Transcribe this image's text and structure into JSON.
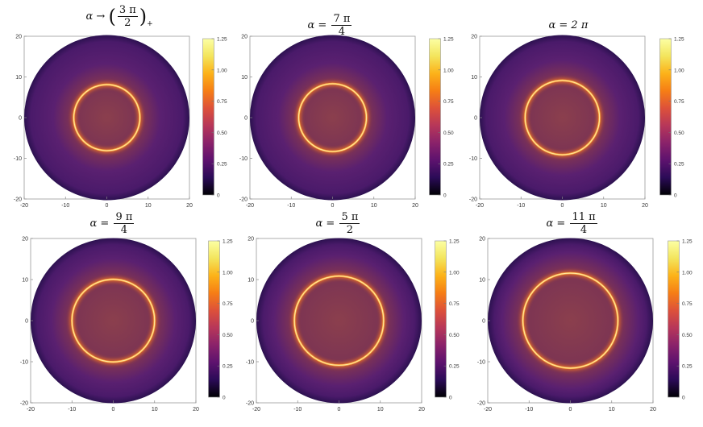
{
  "chart_data": [
    {
      "type": "heatmap",
      "title_parts": {
        "prefix": "α → ",
        "num": "3 π",
        "den": "2",
        "suffix": "+"
      },
      "ring_radius": 8,
      "xlim": [
        -20,
        20
      ],
      "ylim": [
        -20,
        20
      ],
      "x_ticks": [
        "-20",
        "-10",
        "0",
        "10",
        "20"
      ],
      "y_ticks": [
        "20",
        "10",
        "0",
        "-10",
        "-20"
      ],
      "colorbar": {
        "range": [
          0,
          1.25
        ],
        "ticks": [
          "1.25",
          "1.00",
          "0.75",
          "0.50",
          "0.25",
          "0"
        ]
      }
    },
    {
      "type": "heatmap",
      "title_parts": {
        "prefix": "α = ",
        "num": "7 π",
        "den": "4",
        "suffix": ""
      },
      "ring_radius": 8.2,
      "xlim": [
        -20,
        20
      ],
      "ylim": [
        -20,
        20
      ],
      "x_ticks": [
        "-20",
        "-10",
        "0",
        "10",
        "20"
      ],
      "y_ticks": [
        "20",
        "10",
        "0",
        "-10",
        "-20"
      ],
      "colorbar": {
        "range": [
          0,
          1.25
        ],
        "ticks": [
          "1.25",
          "1.00",
          "0.75",
          "0.50",
          "0.25",
          "0"
        ]
      }
    },
    {
      "type": "heatmap",
      "title_parts": {
        "prefix": "α = 2 π",
        "num": "",
        "den": "",
        "suffix": ""
      },
      "ring_radius": 9,
      "xlim": [
        -20,
        20
      ],
      "ylim": [
        -20,
        20
      ],
      "x_ticks": [
        "-20",
        "-10",
        "0",
        "10",
        "20"
      ],
      "y_ticks": [
        "20",
        "10",
        "0",
        "-10",
        "-20"
      ],
      "colorbar": {
        "range": [
          0,
          1.25
        ],
        "ticks": [
          "1.25",
          "1.00",
          "0.75",
          "0.50",
          "0.25",
          "0"
        ]
      }
    },
    {
      "type": "heatmap",
      "title_parts": {
        "prefix": "α = ",
        "num": "9 π",
        "den": "4",
        "suffix": ""
      },
      "ring_radius": 10,
      "xlim": [
        -20,
        20
      ],
      "ylim": [
        -20,
        20
      ],
      "x_ticks": [
        "-20",
        "-10",
        "0",
        "10",
        "20"
      ],
      "y_ticks": [
        "20",
        "10",
        "0",
        "-10",
        "-20"
      ],
      "colorbar": {
        "range": [
          0,
          1.25
        ],
        "ticks": [
          "1.25",
          "1.00",
          "0.75",
          "0.50",
          "0.25",
          "0"
        ]
      }
    },
    {
      "type": "heatmap",
      "title_parts": {
        "prefix": "α = ",
        "num": "5 π",
        "den": "2",
        "suffix": ""
      },
      "ring_radius": 10.8,
      "xlim": [
        -20,
        20
      ],
      "ylim": [
        -20,
        20
      ],
      "x_ticks": [
        "-20",
        "-10",
        "0",
        "10",
        "20"
      ],
      "y_ticks": [
        "20",
        "10",
        "0",
        "-10",
        "-20"
      ],
      "colorbar": {
        "range": [
          0,
          1.25
        ],
        "ticks": [
          "1.25",
          "1.00",
          "0.75",
          "0.50",
          "0.25",
          "0"
        ]
      }
    },
    {
      "type": "heatmap",
      "title_parts": {
        "prefix": "α = ",
        "num": "11 π",
        "den": "4",
        "suffix": ""
      },
      "ring_radius": 11.5,
      "xlim": [
        -20,
        20
      ],
      "ylim": [
        -20,
        20
      ],
      "x_ticks": [
        "-20",
        "-10",
        "0",
        "10",
        "20"
      ],
      "y_ticks": [
        "20",
        "10",
        "0",
        "-10",
        "-20"
      ],
      "colorbar": {
        "range": [
          0,
          1.25
        ],
        "ticks": [
          "1.25",
          "1.00",
          "0.75",
          "0.50",
          "0.25",
          "0"
        ]
      }
    }
  ],
  "colors": {
    "disk_edge": "#2c1150",
    "disk_mid": "#4a1a6a",
    "disk_center": "#8b3f4d",
    "ring": "#ffb24a",
    "ring_core": "#fff1b0",
    "colormap": [
      "#000004",
      "#2b0b57",
      "#5d126e",
      "#8a226a",
      "#b73759",
      "#dd513a",
      "#f67e15",
      "#fcb219",
      "#f3e55d",
      "#fcffa4"
    ]
  }
}
